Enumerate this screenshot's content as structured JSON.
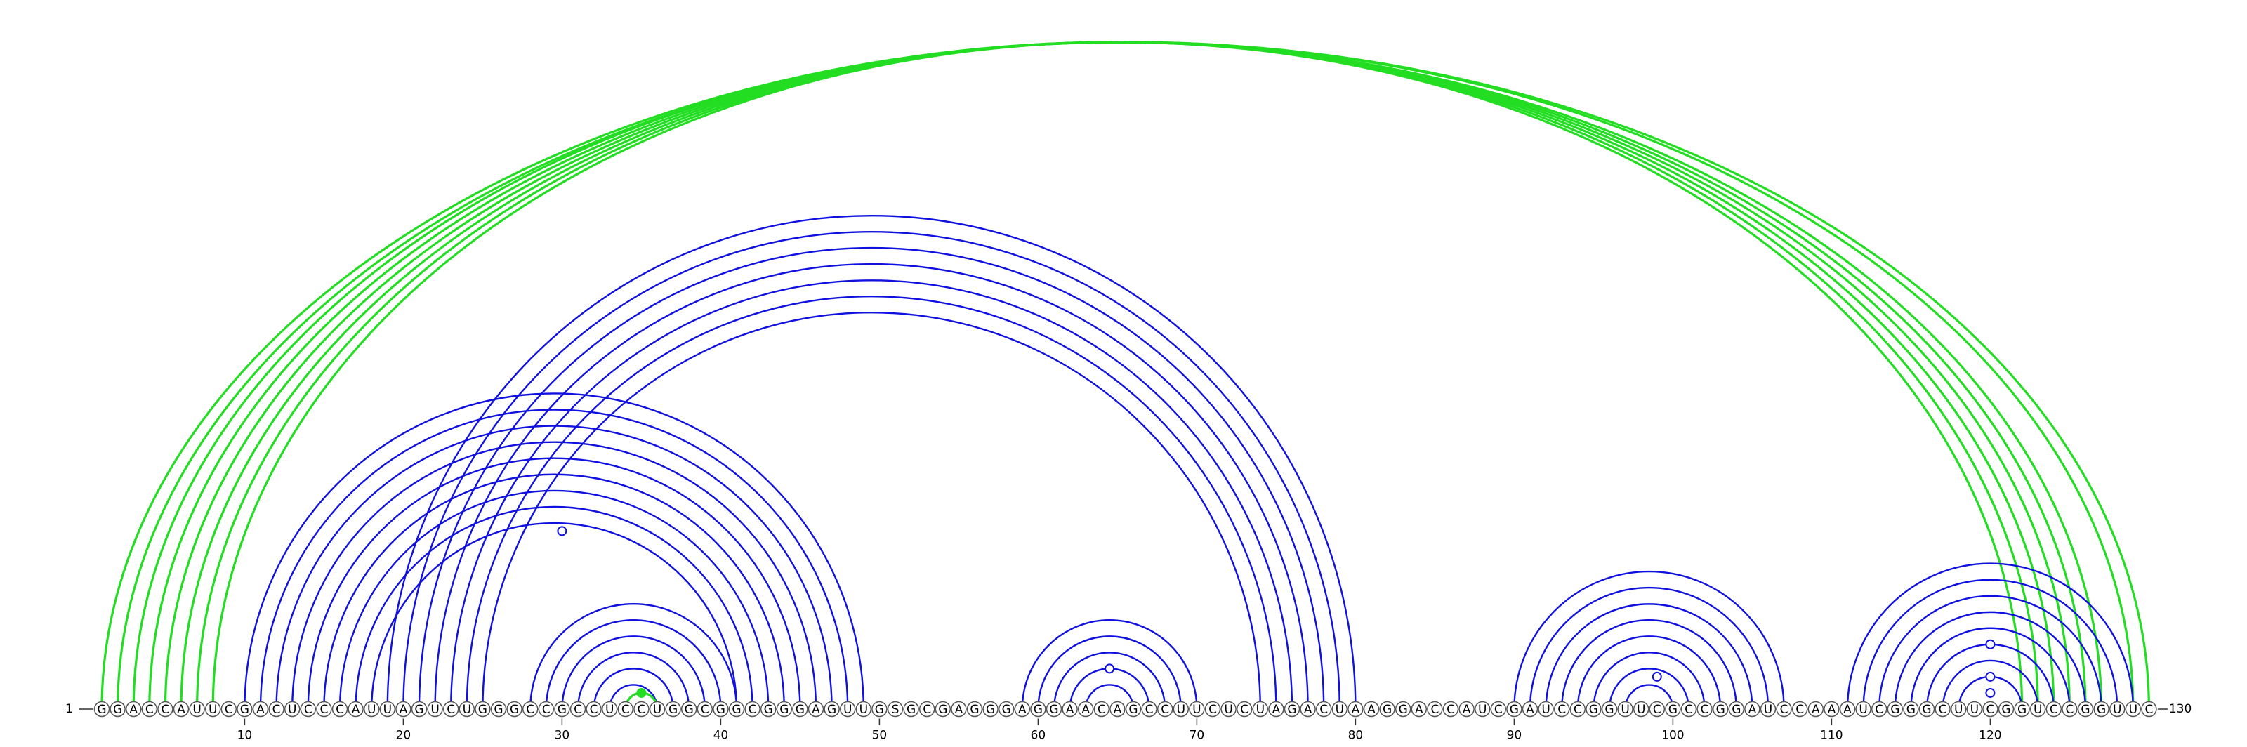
{
  "sequence": "GGACCAUUCGACUCCCAUUAGUCUGGGCCGCCUCCUGGCGGCGGGAGUUGSGCGAGGGAGGAACAGCCUUCUCUAGACUAAGGACCAUCGAUCCGGUUCGCCGGAUCCAAAUCGGGCUUCGGUCCGGUUC",
  "start_label": "1",
  "end_label": "130",
  "ticks": [
    "10",
    "20",
    "30",
    "40",
    "50",
    "60",
    "70",
    "80",
    "90",
    "100",
    "110",
    "120"
  ],
  "colors": {
    "blue": "#1010e0",
    "green": "#22dd22",
    "circle_stroke": "#555555"
  },
  "arc_groups": [
    {
      "color": "green",
      "pairs": [
        [
          1,
          130
        ],
        [
          2,
          129
        ],
        [
          3,
          127
        ],
        [
          4,
          126
        ],
        [
          5,
          125
        ],
        [
          6,
          124
        ],
        [
          7,
          123
        ],
        [
          8,
          122
        ]
      ]
    },
    {
      "color": "blue",
      "pairs": [
        [
          10,
          49
        ],
        [
          11,
          48
        ],
        [
          12,
          47
        ],
        [
          13,
          46
        ],
        [
          14,
          45
        ],
        [
          15,
          44
        ],
        [
          16,
          43
        ],
        [
          17,
          42
        ],
        [
          18,
          41
        ]
      ]
    },
    {
      "color": "blue",
      "pairs": [
        [
          19,
          80
        ],
        [
          20,
          79
        ],
        [
          21,
          78
        ],
        [
          22,
          77
        ],
        [
          23,
          76
        ],
        [
          24,
          75
        ],
        [
          25,
          74
        ]
      ]
    },
    {
      "color": "blue",
      "pairs": [
        [
          28,
          41
        ],
        [
          29,
          40
        ],
        [
          30,
          39
        ],
        [
          31,
          38
        ],
        [
          32,
          37
        ],
        [
          33,
          36
        ]
      ]
    },
    {
      "color": "green",
      "pairs": [
        [
          34,
          36
        ]
      ]
    },
    {
      "color": "blue",
      "pairs": [
        [
          59,
          70
        ],
        [
          60,
          69
        ],
        [
          61,
          68
        ],
        [
          62,
          67
        ],
        [
          63,
          66
        ]
      ]
    },
    {
      "color": "blue",
      "pairs": [
        [
          90,
          107
        ],
        [
          91,
          106
        ],
        [
          92,
          105
        ],
        [
          93,
          104
        ],
        [
          94,
          103
        ],
        [
          95,
          102
        ],
        [
          96,
          101
        ],
        [
          97,
          100
        ]
      ]
    },
    {
      "color": "blue",
      "pairs": [
        [
          111,
          129
        ],
        [
          112,
          128
        ],
        [
          113,
          127
        ],
        [
          114,
          126
        ],
        [
          115,
          125
        ],
        [
          116,
          124
        ],
        [
          117,
          123
        ],
        [
          118,
          122
        ]
      ]
    }
  ],
  "markers": [
    {
      "color": "blue",
      "filled": false,
      "pair": [
        19,
        41
      ]
    },
    {
      "color": "blue",
      "filled": false,
      "pair": [
        62,
        67
      ]
    },
    {
      "color": "blue",
      "filled": false,
      "pair": [
        97,
        101
      ]
    },
    {
      "color": "blue",
      "filled": false,
      "pair": [
        116,
        124
      ]
    },
    {
      "color": "blue",
      "filled": false,
      "pair": [
        118,
        122
      ]
    },
    {
      "color": "blue",
      "filled": false,
      "pair": [
        119,
        121
      ]
    },
    {
      "color": "green",
      "filled": true,
      "pair": [
        34,
        36
      ]
    }
  ]
}
